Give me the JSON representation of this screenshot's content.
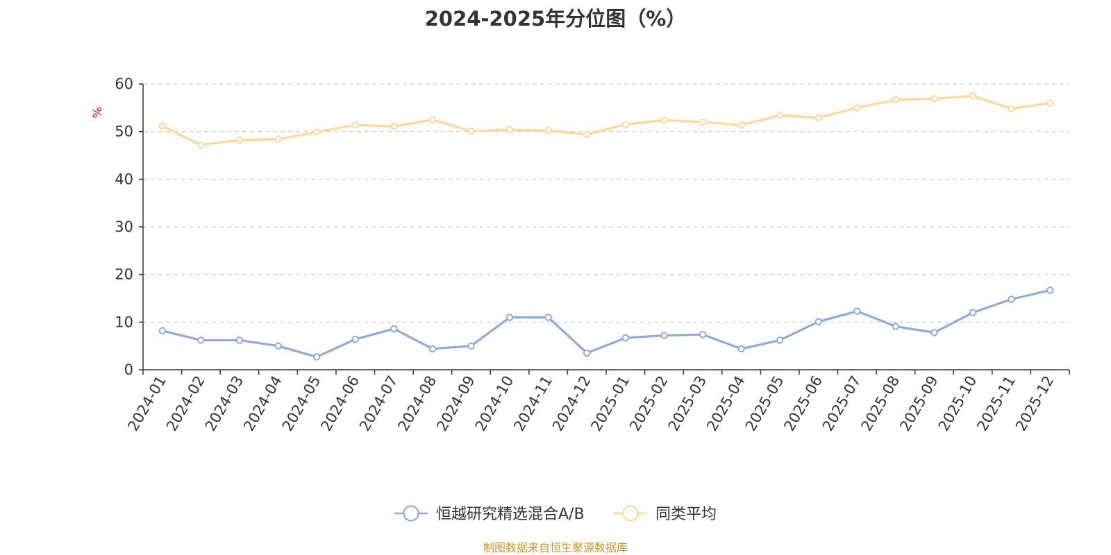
{
  "chart_data": {
    "type": "line",
    "title": "2024-2025年分位图（%）",
    "ylabel": "%",
    "xlabel": "",
    "ylim": [
      0,
      60
    ],
    "yticks": [
      0,
      10,
      20,
      30,
      40,
      50,
      60
    ],
    "grid": true,
    "legend_position": "bottom",
    "categories": [
      "2024-01",
      "2024-02",
      "2024-03",
      "2024-04",
      "2024-05",
      "2024-06",
      "2024-07",
      "2024-08",
      "2024-09",
      "2024-10",
      "2024-11",
      "2024-12",
      "2025-01",
      "2025-02",
      "2025-03",
      "2025-04",
      "2025-05",
      "2025-06",
      "2025-07",
      "2025-08",
      "2025-09",
      "2025-10",
      "2025-11",
      "2025-12"
    ],
    "series": [
      {
        "name": "恒越研究精选混合A/B",
        "color": "#8eaadb",
        "values": [
          8.2,
          6.2,
          6.2,
          5.0,
          2.7,
          6.4,
          8.6,
          4.4,
          5.0,
          11.0,
          11.0,
          3.5,
          6.7,
          7.2,
          7.4,
          4.4,
          6.2,
          10.1,
          12.3,
          9.1,
          7.8,
          12.0,
          14.8,
          16.7
        ]
      },
      {
        "name": "同类平均",
        "color": "#fdd89a",
        "values": [
          51.2,
          47.2,
          48.2,
          48.4,
          49.9,
          51.4,
          51.1,
          52.5,
          50.1,
          50.4,
          50.2,
          49.4,
          51.5,
          52.4,
          52.0,
          51.4,
          53.4,
          52.9,
          55.0,
          56.7,
          56.9,
          57.5,
          54.8,
          56.0
        ]
      }
    ]
  },
  "source_text": "制图数据来自恒生聚源数据库",
  "colors": {
    "axis": "#333333",
    "grid": "#cccccc",
    "ylabel": "#ff0000",
    "source": "#c8962c"
  }
}
